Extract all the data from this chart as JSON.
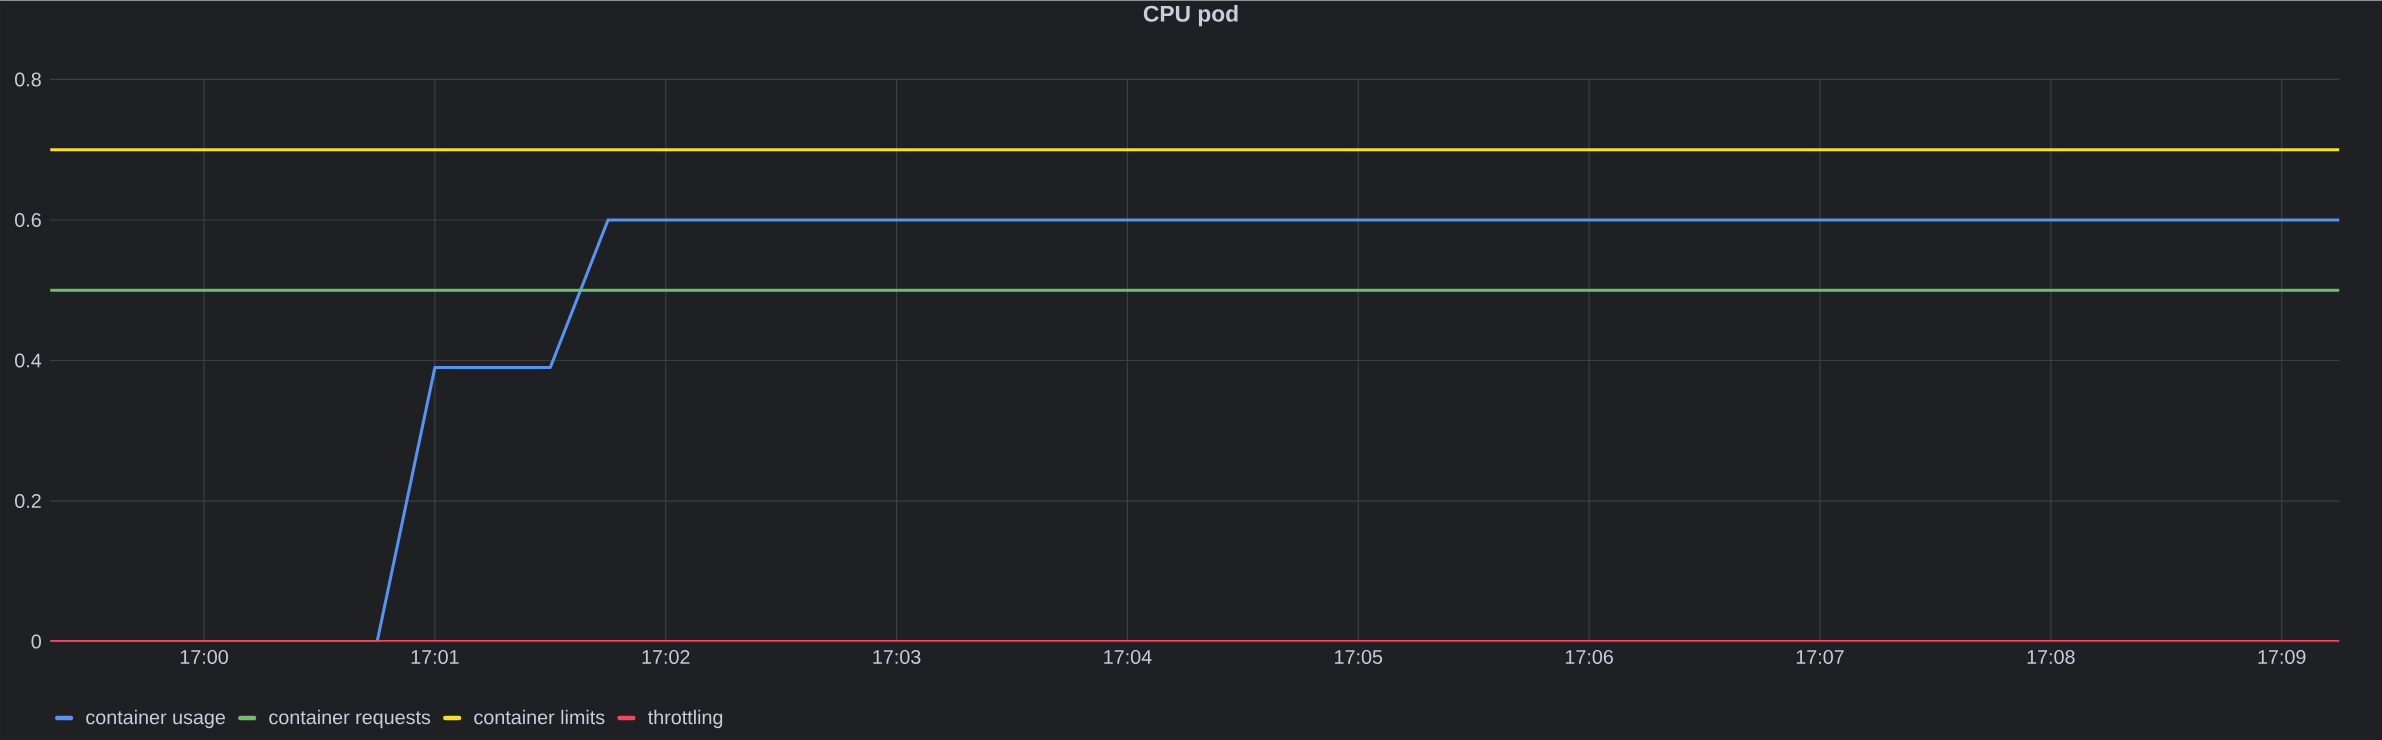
{
  "chart_data": {
    "type": "line",
    "title": "CPU pod",
    "xlim": [
      16.98889,
      17.15417
    ],
    "xticks": [
      {
        "value": 17.0,
        "label": "17:00"
      },
      {
        "value": 17.016667,
        "label": "17:01"
      },
      {
        "value": 17.033333,
        "label": "17:02"
      },
      {
        "value": 17.05,
        "label": "17:03"
      },
      {
        "value": 17.066667,
        "label": "17:04"
      },
      {
        "value": 17.083333,
        "label": "17:05"
      },
      {
        "value": 17.1,
        "label": "17:06"
      },
      {
        "value": 17.116667,
        "label": "17:07"
      },
      {
        "value": 17.133333,
        "label": "17:08"
      },
      {
        "value": 17.15,
        "label": "17:09"
      }
    ],
    "ylim": [
      0,
      0.8
    ],
    "yticks": [
      0,
      0.2,
      0.4,
      0.6,
      0.8
    ],
    "grid": true,
    "legend": "bottom left",
    "line_style": "solid",
    "series": [
      {
        "name": "container usage",
        "color": "#5794f2",
        "x": [
          16.98889,
          17.0125,
          17.016667,
          17.025,
          17.029167,
          17.15417
        ],
        "values": [
          0,
          0,
          0.39,
          0.39,
          0.6,
          0.6
        ]
      },
      {
        "name": "container requests",
        "color": "#73bf69",
        "x": [
          16.98889,
          17.15417
        ],
        "values": [
          0.5,
          0.5
        ]
      },
      {
        "name": "container limits",
        "color": "#fade2a",
        "x": [
          16.98889,
          17.15417
        ],
        "values": [
          0.7,
          0.7
        ]
      },
      {
        "name": "throttling",
        "color": "#f2495c",
        "x": [
          16.98889,
          17.15417
        ],
        "values": [
          0,
          0
        ]
      }
    ]
  }
}
